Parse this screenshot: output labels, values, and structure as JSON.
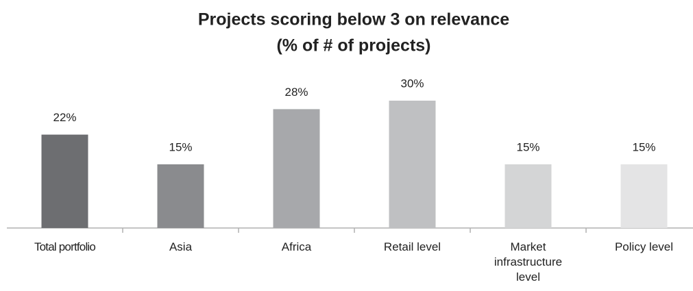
{
  "chart_data": {
    "type": "bar",
    "title": "Projects scoring below 3 on relevance",
    "subtitle": "(% of # of projects)",
    "categories": [
      "Total portfolio",
      "Asia",
      "Africa",
      "Retail level",
      "Market infrastructure level",
      "Policy level"
    ],
    "values": [
      22,
      15,
      28,
      30,
      15,
      15
    ],
    "value_labels": [
      "22%",
      "15%",
      "28%",
      "30%",
      "15%",
      "15%"
    ],
    "colors": [
      "#6d6e71",
      "#8a8b8e",
      "#a7a8ab",
      "#bfc0c2",
      "#d4d5d6",
      "#e4e4e5"
    ]
  }
}
